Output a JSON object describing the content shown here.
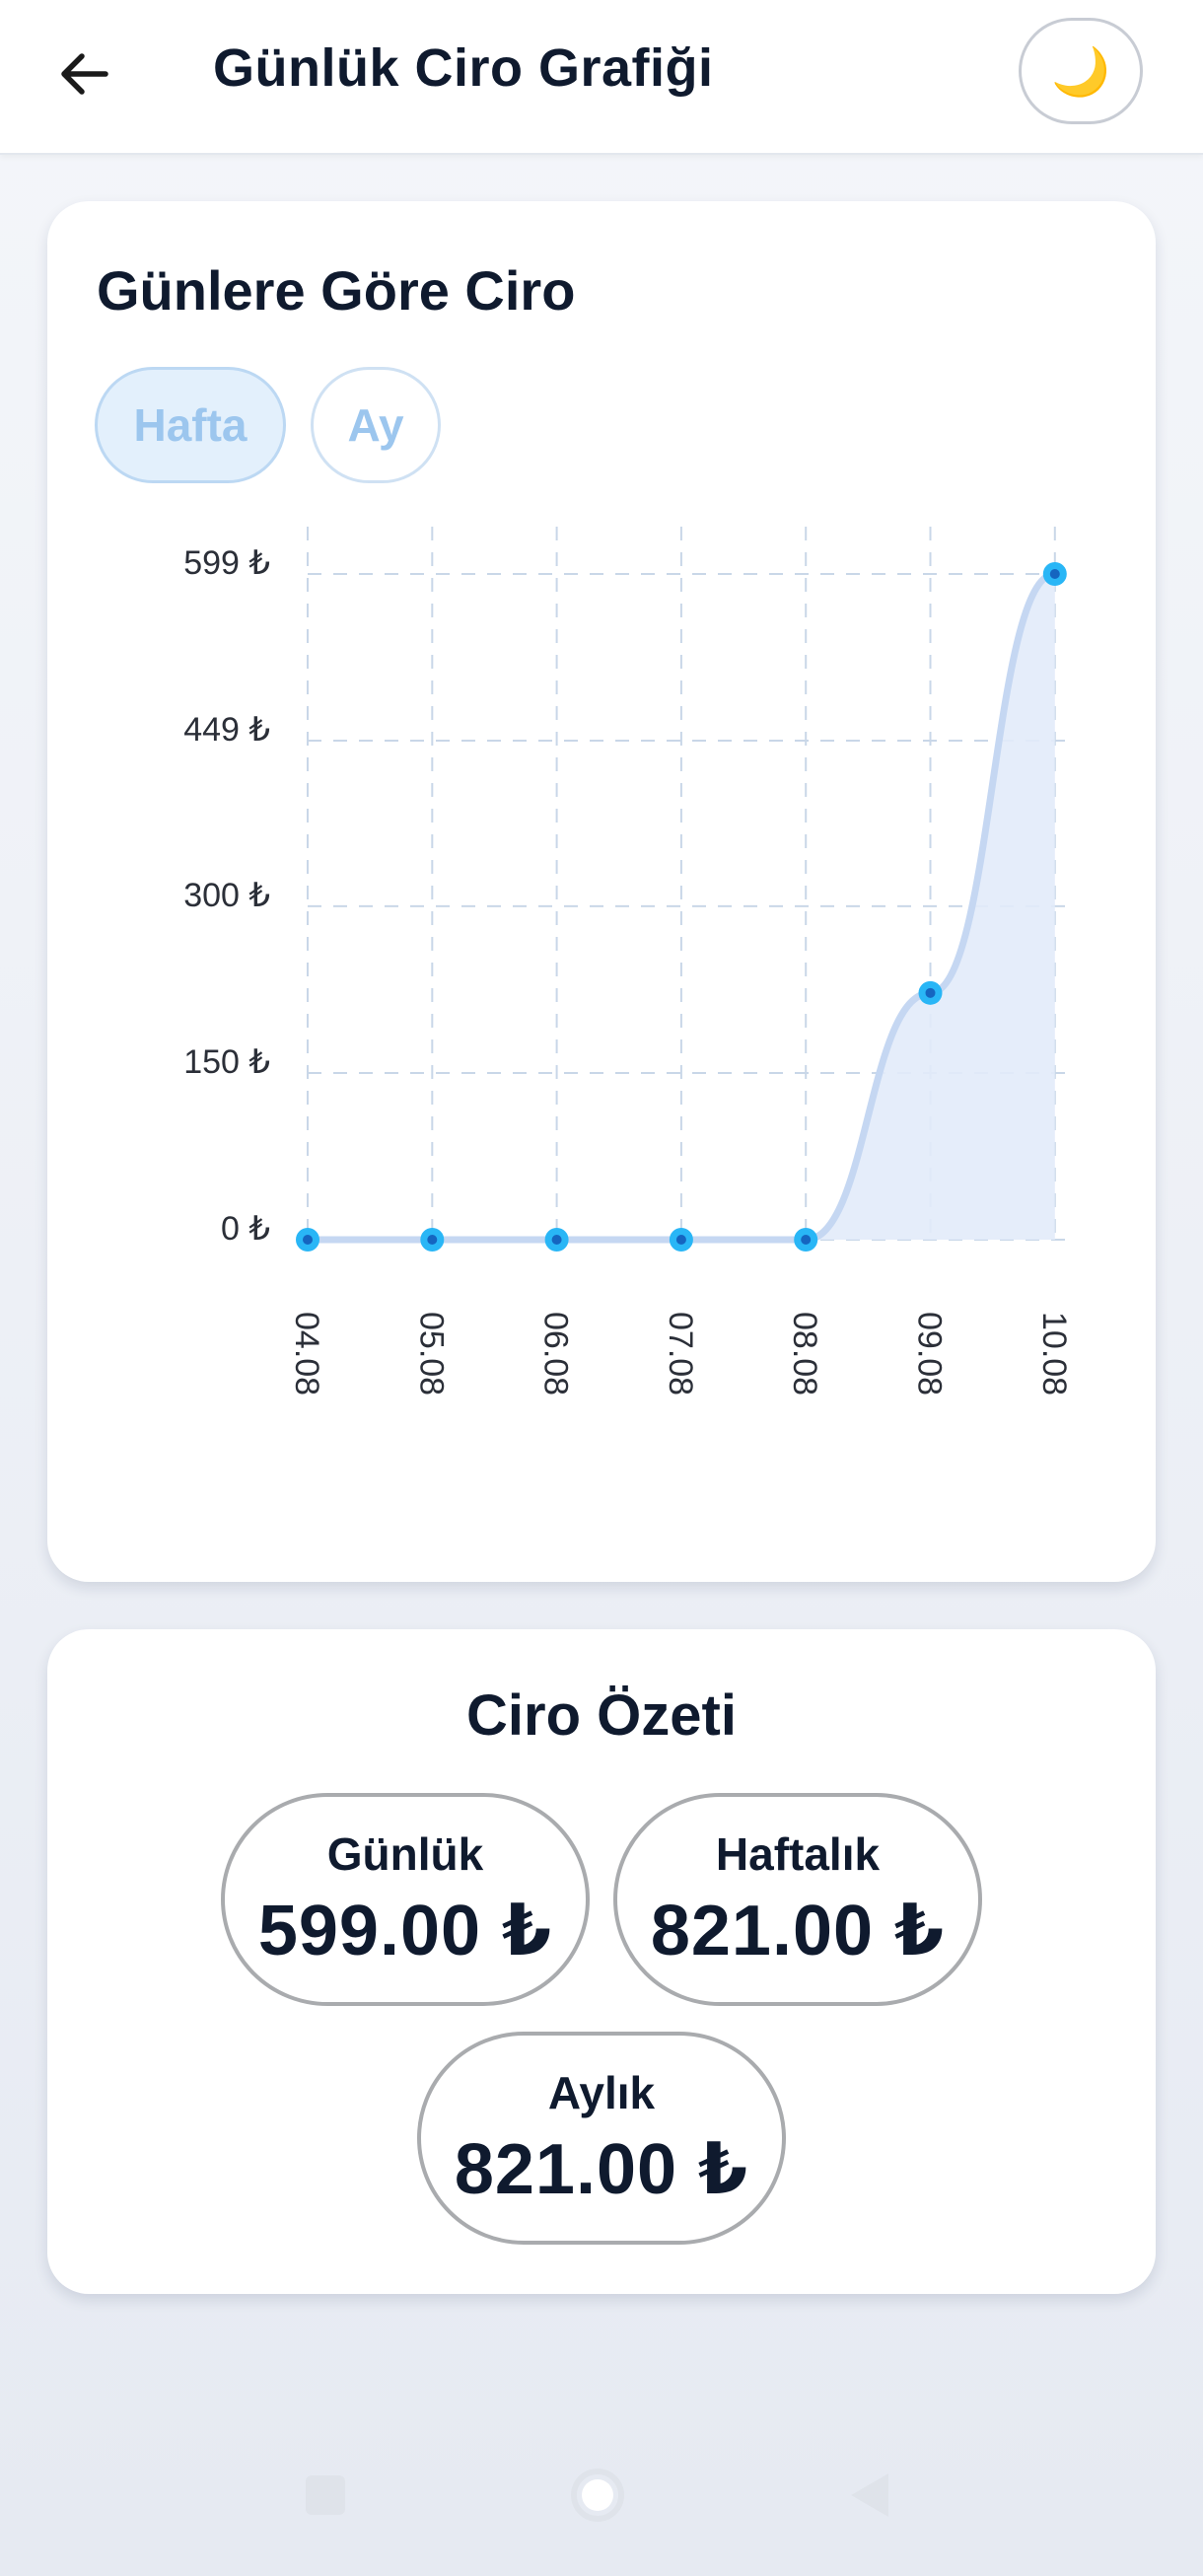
{
  "header": {
    "title": "Günlük Ciro Grafiği",
    "back_icon": "arrow-left-icon",
    "theme_icon": "🌙"
  },
  "chart_card": {
    "title": "Günlere Göre Ciro",
    "tabs": [
      {
        "label": "Hafta",
        "active": true
      },
      {
        "label": "Ay",
        "active": false
      }
    ]
  },
  "chart_data": {
    "type": "line",
    "title": "Günlere Göre Ciro",
    "categories": [
      "04.08",
      "05.08",
      "06.08",
      "07.08",
      "08.08",
      "09.08",
      "10.08"
    ],
    "values": [
      0,
      0,
      0,
      0,
      0,
      222,
      599
    ],
    "y_ticks": [
      0,
      150,
      300,
      449,
      599
    ],
    "y_tick_labels": [
      "0 ₺",
      "150 ₺",
      "300 ₺",
      "449 ₺",
      "599 ₺"
    ],
    "ylim": [
      0,
      599
    ],
    "grid": true,
    "xlabel": "",
    "ylabel": "",
    "colors": {
      "line": "#c5d7f2",
      "fill": "#e2ebfa",
      "point_outer": "#29b6f6",
      "point_inner": "#1565c0",
      "grid": "#c9d7e8"
    }
  },
  "summary": {
    "title": "Ciro Özeti",
    "daily": {
      "label": "Günlük",
      "value": "599.00 ₺"
    },
    "weekly": {
      "label": "Haftalık",
      "value": "821.00 ₺"
    },
    "monthly": {
      "label": "Aylık",
      "value": "821.00 ₺"
    }
  },
  "nav": {
    "recents_icon": "square-icon",
    "home_icon": "circle-icon",
    "back_icon": "triangle-back-icon"
  }
}
